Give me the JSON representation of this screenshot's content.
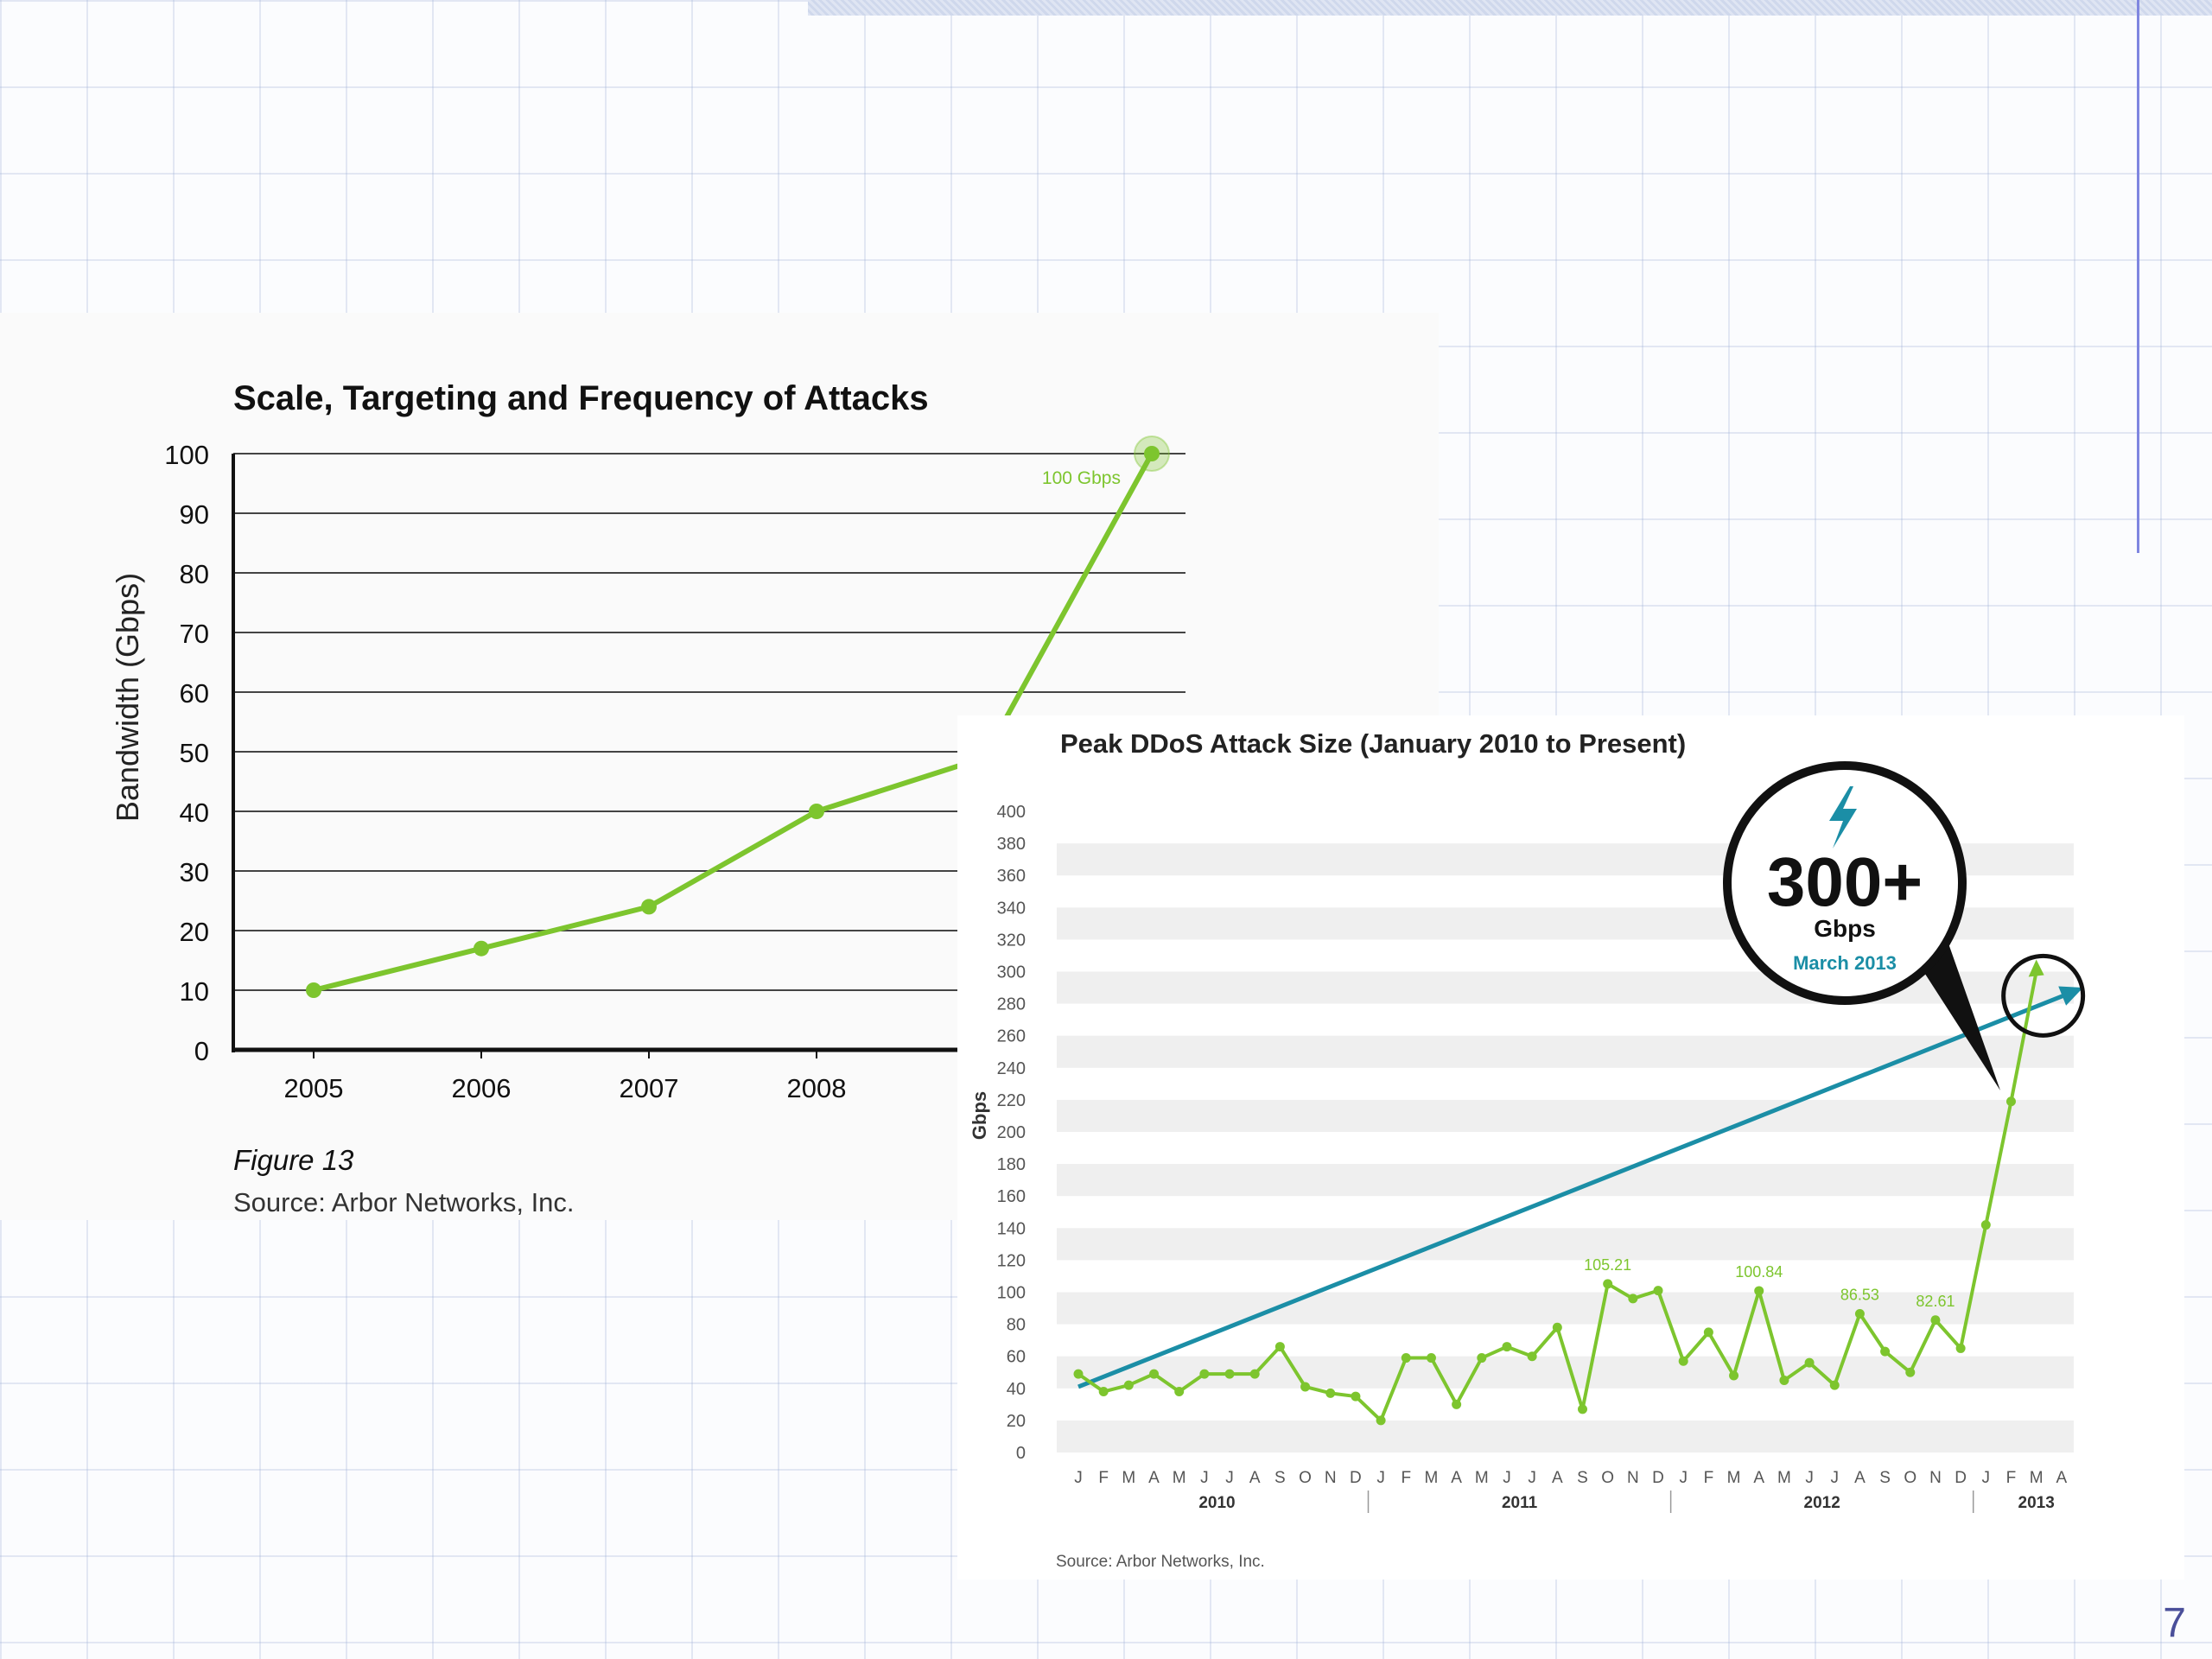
{
  "slide": {
    "page_number": "7"
  },
  "colors": {
    "green": "#7dc52e",
    "blue": "#1b8ea6",
    "dark": "#111111"
  },
  "chart_data": [
    {
      "type": "line",
      "title": "Scale, Targeting and Frequency of Attacks",
      "ylabel": "Bandwidth (Gbps)",
      "xlabel": "",
      "ylim": [
        0,
        100
      ],
      "y_ticks": [
        "0",
        "10",
        "20",
        "30",
        "40",
        "50",
        "60",
        "70",
        "80",
        "90",
        "100"
      ],
      "x_ticks": [
        "2005",
        "2006",
        "2007",
        "2008"
      ],
      "series": [
        {
          "x": [
            2005,
            2006,
            2007,
            2008,
            2009,
            2010
          ],
          "values": [
            10,
            17,
            24,
            40,
            49,
            100
          ]
        }
      ],
      "annotation": "100 Gbps",
      "caption": "Figure 13",
      "source": "Source: Arbor Networks, Inc.",
      "grid": true
    },
    {
      "type": "line",
      "title": "Peak DDoS Attack Size (January 2010 to Present)",
      "ylabel": "Gbps",
      "ylim": [
        0,
        400
      ],
      "y_ticks": [
        "0",
        "20",
        "40",
        "60",
        "80",
        "100",
        "120",
        "140",
        "160",
        "180",
        "200",
        "220",
        "240",
        "260",
        "280",
        "300",
        "320",
        "340",
        "360",
        "380",
        "400"
      ],
      "month_labels": [
        "J",
        "F",
        "M",
        "A",
        "M",
        "J",
        "J",
        "A",
        "S",
        "O",
        "N",
        "D",
        "J",
        "F",
        "M",
        "A",
        "M",
        "J",
        "J",
        "A",
        "S",
        "O",
        "N",
        "D",
        "J",
        "F",
        "M",
        "A",
        "M",
        "J",
        "J",
        "A",
        "S",
        "O",
        "N",
        "D",
        "J",
        "F",
        "M",
        "A"
      ],
      "year_labels": [
        "2010",
        "2011",
        "2012",
        "2013"
      ],
      "series": [
        {
          "values": [
            49,
            38,
            42,
            49,
            38,
            49,
            49,
            49,
            66,
            41,
            37,
            35,
            20,
            59,
            59,
            30,
            59,
            66,
            60,
            78,
            27,
            105.21,
            96,
            101,
            57,
            75,
            48,
            100.84,
            45,
            56,
            42,
            86.53,
            63,
            50,
            82.61,
            65,
            142,
            219,
            300
          ]
        }
      ],
      "point_labels": [
        {
          "index": 21,
          "text": "105.21"
        },
        {
          "index": 27,
          "text": "100.84"
        },
        {
          "index": 31,
          "text": "86.53"
        },
        {
          "index": 34,
          "text": "82.61"
        }
      ],
      "trend_arrow": {
        "from": [
          0,
          41
        ],
        "to": [
          39,
          290
        ]
      },
      "callout": {
        "value": "300+",
        "unit": "Gbps",
        "date": "March 2013"
      },
      "source": "Source: Arbor Networks, Inc.",
      "grid": "banded"
    }
  ]
}
